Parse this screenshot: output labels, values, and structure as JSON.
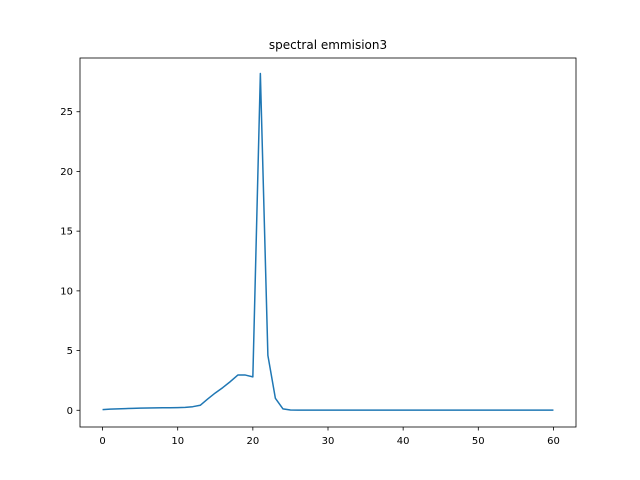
{
  "chart_data": {
    "type": "line",
    "title": "spectral emmision3",
    "xlabel": "",
    "ylabel": "",
    "xlim": [
      -3,
      63
    ],
    "ylim": [
      -1.4,
      29.5
    ],
    "xticks": [
      0,
      10,
      20,
      30,
      40,
      50,
      60
    ],
    "yticks": [
      0,
      5,
      10,
      15,
      20,
      25
    ],
    "grid": false,
    "line_color": "#1f77b4",
    "series": [
      {
        "x": [
          0,
          1,
          2,
          3,
          4,
          5,
          6,
          7,
          8,
          9,
          10,
          11,
          12,
          13,
          14,
          15,
          16,
          17,
          18,
          19,
          20,
          21,
          22,
          23,
          24,
          25,
          26,
          27,
          28,
          29,
          30,
          31,
          32,
          33,
          34,
          35,
          36,
          37,
          38,
          39,
          40,
          41,
          42,
          43,
          44,
          45,
          46,
          47,
          48,
          49,
          50,
          51,
          52,
          53,
          54,
          55,
          56,
          57,
          58,
          59,
          60
        ],
        "values": [
          0.05,
          0.1,
          0.12,
          0.14,
          0.16,
          0.18,
          0.19,
          0.2,
          0.21,
          0.21,
          0.22,
          0.24,
          0.3,
          0.42,
          0.95,
          1.45,
          1.9,
          2.4,
          2.95,
          2.95,
          2.8,
          28.2,
          4.6,
          1.0,
          0.12,
          0.02,
          0.01,
          0.01,
          0.01,
          0.01,
          0.01,
          0.01,
          0.01,
          0.01,
          0.01,
          0.01,
          0.01,
          0.01,
          0.01,
          0.01,
          0.01,
          0.01,
          0.01,
          0.01,
          0.01,
          0.01,
          0.01,
          0.01,
          0.01,
          0.01,
          0.01,
          0.01,
          0.01,
          0.01,
          0.01,
          0.01,
          0.01,
          0.01,
          0.01,
          0.01,
          0.01
        ]
      }
    ]
  }
}
